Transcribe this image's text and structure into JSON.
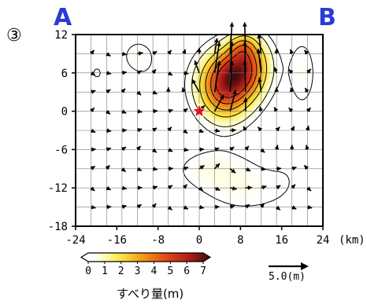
{
  "panel_label": "③",
  "corner_left": "A",
  "corner_right": "B",
  "colorbar": {
    "title": "すべり量(m)",
    "ticks": [
      "0",
      "1",
      "2",
      "3",
      "4",
      "5",
      "6",
      "7"
    ]
  },
  "reference": {
    "label": "5.0(m)",
    "length_m": 5.0
  },
  "colors": {
    "axis_letter": "#2b3bd6",
    "hypocenter": "#e01515",
    "grid": "#777777"
  },
  "chart_data": {
    "type": "heatmap",
    "title": "",
    "xlabel": "",
    "ylabel": "",
    "x_unit_label": "(km)",
    "xlim": [
      -24,
      24
    ],
    "ylim": [
      -18,
      12
    ],
    "x_ticks": [
      "-24",
      "-16",
      "-8",
      "0",
      "8",
      "16",
      "24"
    ],
    "y_ticks": [
      "12",
      "6",
      "0",
      "-6",
      "-12",
      "-18"
    ],
    "grid_spacing_km": 3,
    "colorscale": {
      "min": 0,
      "max": 7,
      "unit": "m"
    },
    "hypocenter": {
      "x": 0,
      "y": 0
    },
    "slip_peaks": [
      {
        "x": 5,
        "y": 4,
        "sx": 3.5,
        "sy": 3.5,
        "amp": 5.2
      },
      {
        "x": 7,
        "y": 6.5,
        "sx": 2.5,
        "sy": 2.5,
        "amp": 1.5
      },
      {
        "x": 10,
        "y": 7,
        "sx": 2.8,
        "sy": 3.2,
        "amp": 3.0
      },
      {
        "x": 8.5,
        "y": 10,
        "sx": 1.8,
        "sy": 1.5,
        "amp": 1.5
      },
      {
        "x": 3,
        "y": -9,
        "sx": 6,
        "sy": 2.5,
        "amp": 0.8
      },
      {
        "x": 9,
        "y": -13,
        "sx": 6,
        "sy": 2.5,
        "amp": 0.6
      },
      {
        "x": 20,
        "y": 6,
        "sx": 2.5,
        "sy": 5,
        "amp": 0.7
      },
      {
        "x": -10,
        "y": 5,
        "sx": 4,
        "sy": 4,
        "amp": 0.35
      },
      {
        "x": -20,
        "y": 6,
        "sx": 2.5,
        "sy": 2.5,
        "amp": 0.5
      },
      {
        "x": -12,
        "y": 9,
        "sx": 2.5,
        "sy": 2,
        "amp": 0.5
      },
      {
        "x": 18,
        "y": -9,
        "sx": 4,
        "sy": 4,
        "amp": 0.35
      },
      {
        "x": -18,
        "y": -14,
        "sx": 5,
        "sy": 2.5,
        "amp": 0.3
      }
    ],
    "contour_levels_m": [
      0.5,
      1,
      2,
      3,
      4,
      5
    ],
    "vectors_note": "slip direction arrows at each subfault, length proportional to slip"
  }
}
